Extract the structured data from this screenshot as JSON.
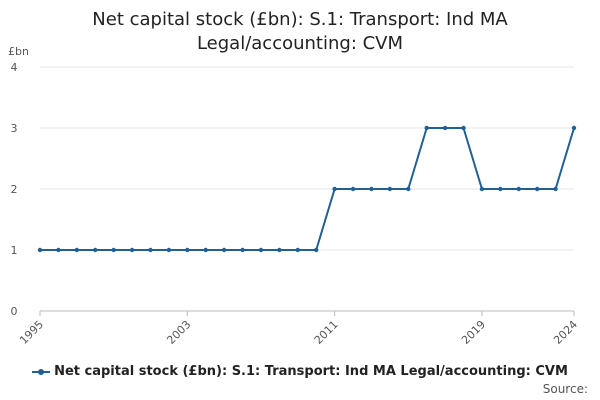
{
  "chart_data": {
    "type": "line",
    "title_line1": "Net capital stock (£bn): S.1: Transport: Ind MA",
    "title_line2": "Legal/accounting: CVM",
    "ylabel": "£bn",
    "xlabel": "",
    "ylim": [
      0,
      4
    ],
    "xlim": [
      1995,
      2024
    ],
    "y_ticks": [
      0,
      1,
      2,
      3,
      4
    ],
    "x_ticks": [
      1995,
      2003,
      2011,
      2019,
      2024
    ],
    "grid": "horizontal",
    "legend_placement": "bottom",
    "series": [
      {
        "name": "Net capital stock (£bn): S.1: Transport: Ind MA Legal/accounting: CVM",
        "color": "#206095",
        "x": [
          1995,
          1996,
          1997,
          1998,
          1999,
          2000,
          2001,
          2002,
          2003,
          2004,
          2005,
          2006,
          2007,
          2008,
          2009,
          2010,
          2011,
          2012,
          2013,
          2014,
          2015,
          2016,
          2017,
          2018,
          2019,
          2020,
          2021,
          2022,
          2023,
          2024
        ],
        "values": [
          1,
          1,
          1,
          1,
          1,
          1,
          1,
          1,
          1,
          1,
          1,
          1,
          1,
          1,
          1,
          1,
          2,
          2,
          2,
          2,
          2,
          3,
          3,
          3,
          2,
          2,
          2,
          2,
          2,
          3
        ]
      }
    ],
    "source_label": "Source:"
  }
}
